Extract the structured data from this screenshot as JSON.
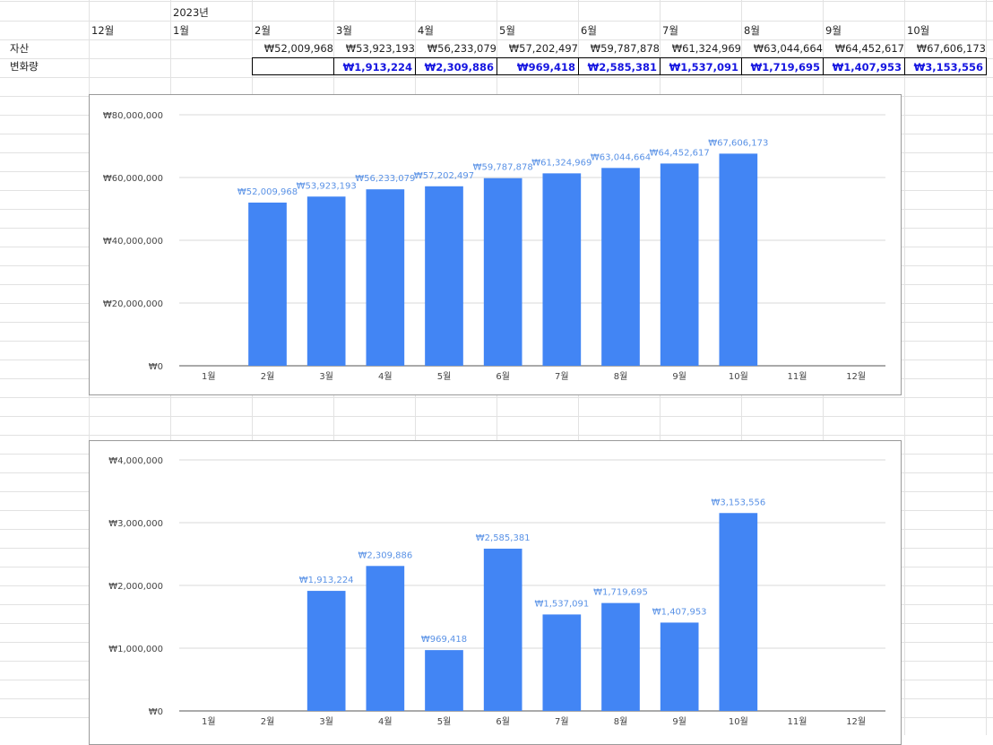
{
  "sheet": {
    "year_label": "2023년",
    "row_labels": {
      "assets": "자산",
      "change": "변화량"
    },
    "months": [
      "12월",
      "1월",
      "2월",
      "3월",
      "4월",
      "5월",
      "6월",
      "7월",
      "8월",
      "9월",
      "10월"
    ],
    "assets": [
      "",
      "",
      "₩52,009,968",
      "₩53,923,193",
      "₩56,233,079",
      "₩57,202,497",
      "₩59,787,878",
      "₩61,324,969",
      "₩63,044,664",
      "₩64,452,617",
      "₩67,606,173"
    ],
    "changes": [
      "",
      "",
      "",
      "₩1,913,224",
      "₩2,309,886",
      "₩969,418",
      "₩2,585,381",
      "₩1,537,091",
      "₩1,719,695",
      "₩1,407,953",
      "₩3,153,556"
    ]
  },
  "colors": {
    "bar": "#4285f4",
    "data_label": "#5a92e6",
    "delta_text": "#1515e0"
  },
  "chart_data": [
    {
      "type": "bar",
      "title": "",
      "xlabel": "",
      "ylabel": "",
      "categories": [
        "1월",
        "2월",
        "3월",
        "4월",
        "5월",
        "6월",
        "7월",
        "8월",
        "9월",
        "10월",
        "11월",
        "12월"
      ],
      "values": [
        null,
        52009968,
        53923193,
        56233079,
        57202497,
        59787878,
        61324969,
        63044664,
        64452617,
        67606173,
        null,
        null
      ],
      "value_labels": [
        "",
        "₩52,009,968",
        "₩53,923,193",
        "₩56,233,079",
        "₩57,202,497",
        "₩59,787,878",
        "₩61,324,969",
        "₩63,044,664",
        "₩64,452,617",
        "₩67,606,173",
        "",
        ""
      ],
      "ylim": [
        0,
        80000000
      ],
      "yticks": [
        0,
        20000000,
        40000000,
        60000000,
        80000000
      ],
      "ytick_labels": [
        "₩0",
        "₩20,000,000",
        "₩40,000,000",
        "₩60,000,000",
        "₩80,000,000"
      ],
      "grid": true
    },
    {
      "type": "bar",
      "title": "",
      "xlabel": "",
      "ylabel": "",
      "categories": [
        "1월",
        "2월",
        "3월",
        "4월",
        "5월",
        "6월",
        "7월",
        "8월",
        "9월",
        "10월",
        "11월",
        "12월"
      ],
      "values": [
        null,
        null,
        1913224,
        2309886,
        969418,
        2585381,
        1537091,
        1719695,
        1407953,
        3153556,
        null,
        null
      ],
      "value_labels": [
        "",
        "",
        "₩1,913,224",
        "₩2,309,886",
        "₩969,418",
        "₩2,585,381",
        "₩1,537,091",
        "₩1,719,695",
        "₩1,407,953",
        "₩3,153,556",
        "",
        ""
      ],
      "ylim": [
        0,
        4000000
      ],
      "yticks": [
        0,
        1000000,
        2000000,
        3000000,
        4000000
      ],
      "ytick_labels": [
        "₩0",
        "₩1,000,000",
        "₩2,000,000",
        "₩3,000,000",
        "₩4,000,000"
      ],
      "grid": true
    }
  ]
}
